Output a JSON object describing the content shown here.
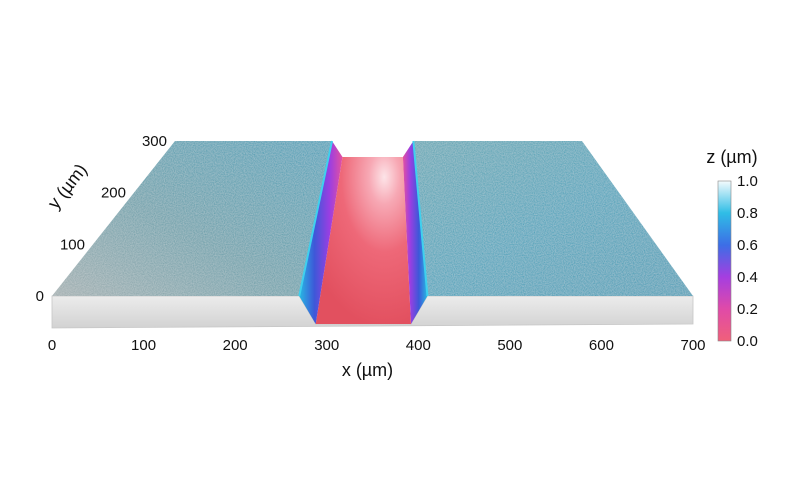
{
  "chart_data": {
    "type": "surface",
    "title": "",
    "xlabel": "x (µm)",
    "ylabel": "y (µm)",
    "zlabel": "z (µm)",
    "xlim": [
      0,
      700
    ],
    "ylim": [
      0,
      300
    ],
    "zlim": [
      0.0,
      1.0
    ],
    "x_ticks": [
      "0",
      "100",
      "200",
      "300",
      "400",
      "500",
      "600",
      "700"
    ],
    "y_ticks": [
      "0",
      "100",
      "200",
      "300"
    ],
    "z_ticks": [
      "0.0",
      "0.2",
      "0.4",
      "0.6",
      "0.8",
      "1.0"
    ],
    "surface_profile": {
      "left_plateau": {
        "x_start": 0,
        "x_end": 270,
        "z": 0.65
      },
      "trench": {
        "x_start": 270,
        "x_end": 410,
        "z": 0.0
      },
      "right_plateau": {
        "x_start": 410,
        "x_end": 700,
        "z": 0.65
      }
    },
    "colormap": [
      {
        "z": 0.0,
        "color": "#f0607a"
      },
      {
        "z": 0.2,
        "color": "#e04aa8"
      },
      {
        "z": 0.4,
        "color": "#a53ee0"
      },
      {
        "z": 0.6,
        "color": "#3c6ee6"
      },
      {
        "z": 0.8,
        "color": "#2fbde6"
      },
      {
        "z": 1.0,
        "color": "#f4fbfd"
      }
    ],
    "plateau_color": "#2e9fb8",
    "base_color": "#dcdcdc"
  }
}
